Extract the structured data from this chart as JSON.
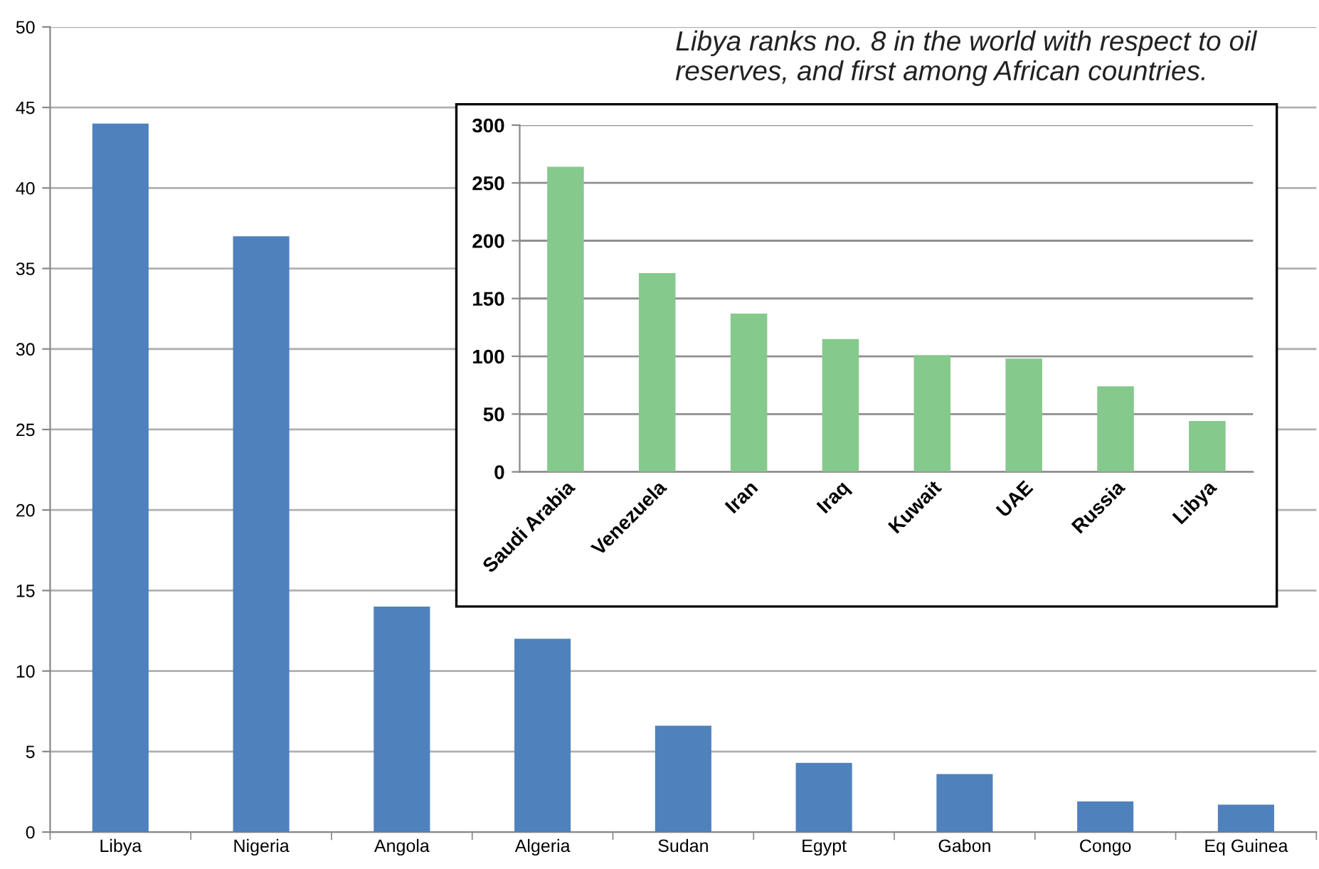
{
  "chart_data": [
    {
      "type": "bar",
      "categories": [
        "Libya",
        "Nigeria",
        "Angola",
        "Algeria",
        "Sudan",
        "Egypt",
        "Gabon",
        "Congo",
        "Eq Guinea"
      ],
      "values": [
        44,
        37,
        14,
        12,
        6.6,
        4.3,
        3.6,
        1.9,
        1.7
      ],
      "color": "#4f81bd",
      "ylim": [
        0,
        50
      ],
      "yticks": [
        0,
        5,
        10,
        15,
        20,
        25,
        30,
        35,
        40,
        45,
        50
      ],
      "grid": "y",
      "legend": false,
      "annotations": [
        "Libya ranks no. 8 in the world with respect to oil reserves, and first among African countries."
      ]
    },
    {
      "type": "bar",
      "categories": [
        "Saudi Arabia",
        "Venezuela",
        "Iran",
        "Iraq",
        "Kuwait",
        "UAE",
        "Russia",
        "Libya"
      ],
      "values": [
        264,
        172,
        137,
        115,
        101,
        98,
        74,
        44
      ],
      "color": "#85c98c",
      "ylim": [
        0,
        300
      ],
      "yticks": [
        0,
        50,
        100,
        150,
        200,
        250,
        300
      ],
      "grid": "y",
      "legend": false
    }
  ]
}
